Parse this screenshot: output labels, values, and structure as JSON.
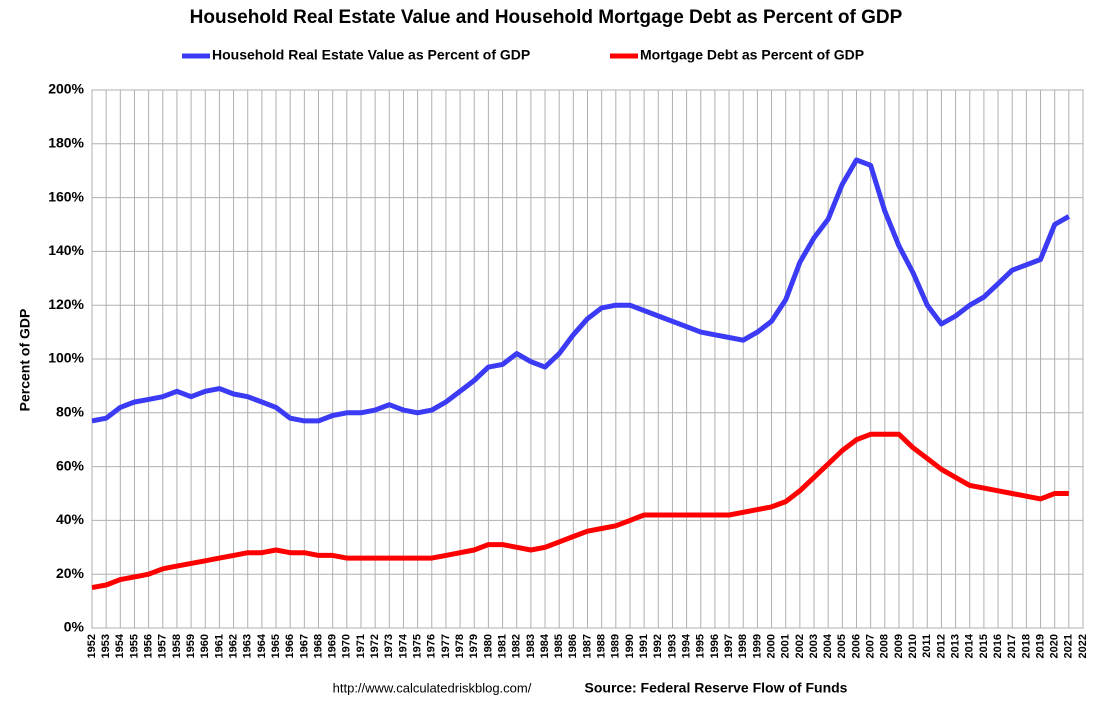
{
  "chart_data": {
    "type": "line",
    "title": "Household Real Estate Value and Household Mortgage Debt as Percent of GDP",
    "ylabel": "Percent of GDP",
    "annotations": [
      "http://www.calculatedriskblog.com/",
      "Source: Federal Reserve Flow of Funds"
    ],
    "x": [
      1952,
      1953,
      1954,
      1955,
      1956,
      1957,
      1958,
      1959,
      1960,
      1961,
      1962,
      1963,
      1964,
      1965,
      1966,
      1967,
      1968,
      1969,
      1970,
      1971,
      1972,
      1973,
      1974,
      1975,
      1976,
      1977,
      1978,
      1979,
      1980,
      1981,
      1982,
      1983,
      1984,
      1985,
      1986,
      1987,
      1988,
      1989,
      1990,
      1991,
      1992,
      1993,
      1994,
      1995,
      1996,
      1997,
      1998,
      1999,
      2000,
      2001,
      2002,
      2003,
      2004,
      2005,
      2006,
      2007,
      2008,
      2009,
      2010,
      2011,
      2012,
      2013,
      2014,
      2015,
      2016,
      2017,
      2018,
      2019,
      2020,
      2021
    ],
    "series": [
      {
        "name": "Household Real Estate Value as Percent of GDP",
        "color": "#3b3bf5",
        "values": [
          77,
          78,
          82,
          84,
          85,
          86,
          88,
          86,
          88,
          89,
          87,
          86,
          84,
          82,
          78,
          77,
          77,
          79,
          80,
          80,
          81,
          83,
          81,
          80,
          81,
          84,
          88,
          92,
          97,
          98,
          102,
          99,
          97,
          102,
          109,
          115,
          119,
          120,
          120,
          118,
          116,
          114,
          112,
          110,
          109,
          108,
          107,
          110,
          114,
          122,
          136,
          145,
          152,
          165,
          174,
          172,
          155,
          142,
          132,
          120,
          113,
          116,
          120,
          123,
          128,
          133,
          135,
          137,
          150,
          153
        ]
      },
      {
        "name": "Mortgage Debt as Percent of GDP",
        "color": "#ff0000",
        "values": [
          15,
          16,
          18,
          19,
          20,
          22,
          23,
          24,
          25,
          26,
          27,
          28,
          28,
          29,
          28,
          28,
          27,
          27,
          26,
          26,
          26,
          26,
          26,
          26,
          26,
          27,
          28,
          29,
          31,
          31,
          30,
          29,
          30,
          32,
          34,
          36,
          37,
          38,
          40,
          42,
          42,
          42,
          42,
          42,
          42,
          42,
          43,
          44,
          45,
          47,
          51,
          56,
          61,
          66,
          70,
          72,
          72,
          72,
          67,
          63,
          59,
          56,
          53,
          52,
          51,
          50,
          49,
          48,
          50,
          50
        ]
      }
    ],
    "xlim": [
      1952,
      2022
    ],
    "xticks": [
      1952,
      1953,
      1954,
      1955,
      1956,
      1957,
      1958,
      1959,
      1960,
      1961,
      1962,
      1963,
      1964,
      1965,
      1966,
      1967,
      1968,
      1969,
      1970,
      1971,
      1972,
      1973,
      1974,
      1975,
      1976,
      1977,
      1978,
      1979,
      1980,
      1981,
      1982,
      1983,
      1984,
      1985,
      1986,
      1987,
      1988,
      1989,
      1990,
      1991,
      1992,
      1993,
      1994,
      1995,
      1996,
      1997,
      1998,
      1999,
      2000,
      2001,
      2002,
      2003,
      2004,
      2005,
      2006,
      2007,
      2008,
      2009,
      2010,
      2011,
      2012,
      2013,
      2014,
      2015,
      2016,
      2017,
      2018,
      2019,
      2020,
      2021,
      2022
    ],
    "ylim": [
      0,
      200
    ],
    "yticks": [
      {
        "value": 0,
        "label": "0%"
      },
      {
        "value": 20,
        "label": "20%"
      },
      {
        "value": 40,
        "label": "40%"
      },
      {
        "value": 60,
        "label": "60%"
      },
      {
        "value": 80,
        "label": "80%"
      },
      {
        "value": 100,
        "label": "100%"
      },
      {
        "value": 120,
        "label": "120%"
      },
      {
        "value": 140,
        "label": "140%"
      },
      {
        "value": 160,
        "label": "160%"
      },
      {
        "value": 180,
        "label": "180%"
      },
      {
        "value": 200,
        "label": "200%"
      }
    ],
    "grid": true,
    "legend": "top"
  }
}
